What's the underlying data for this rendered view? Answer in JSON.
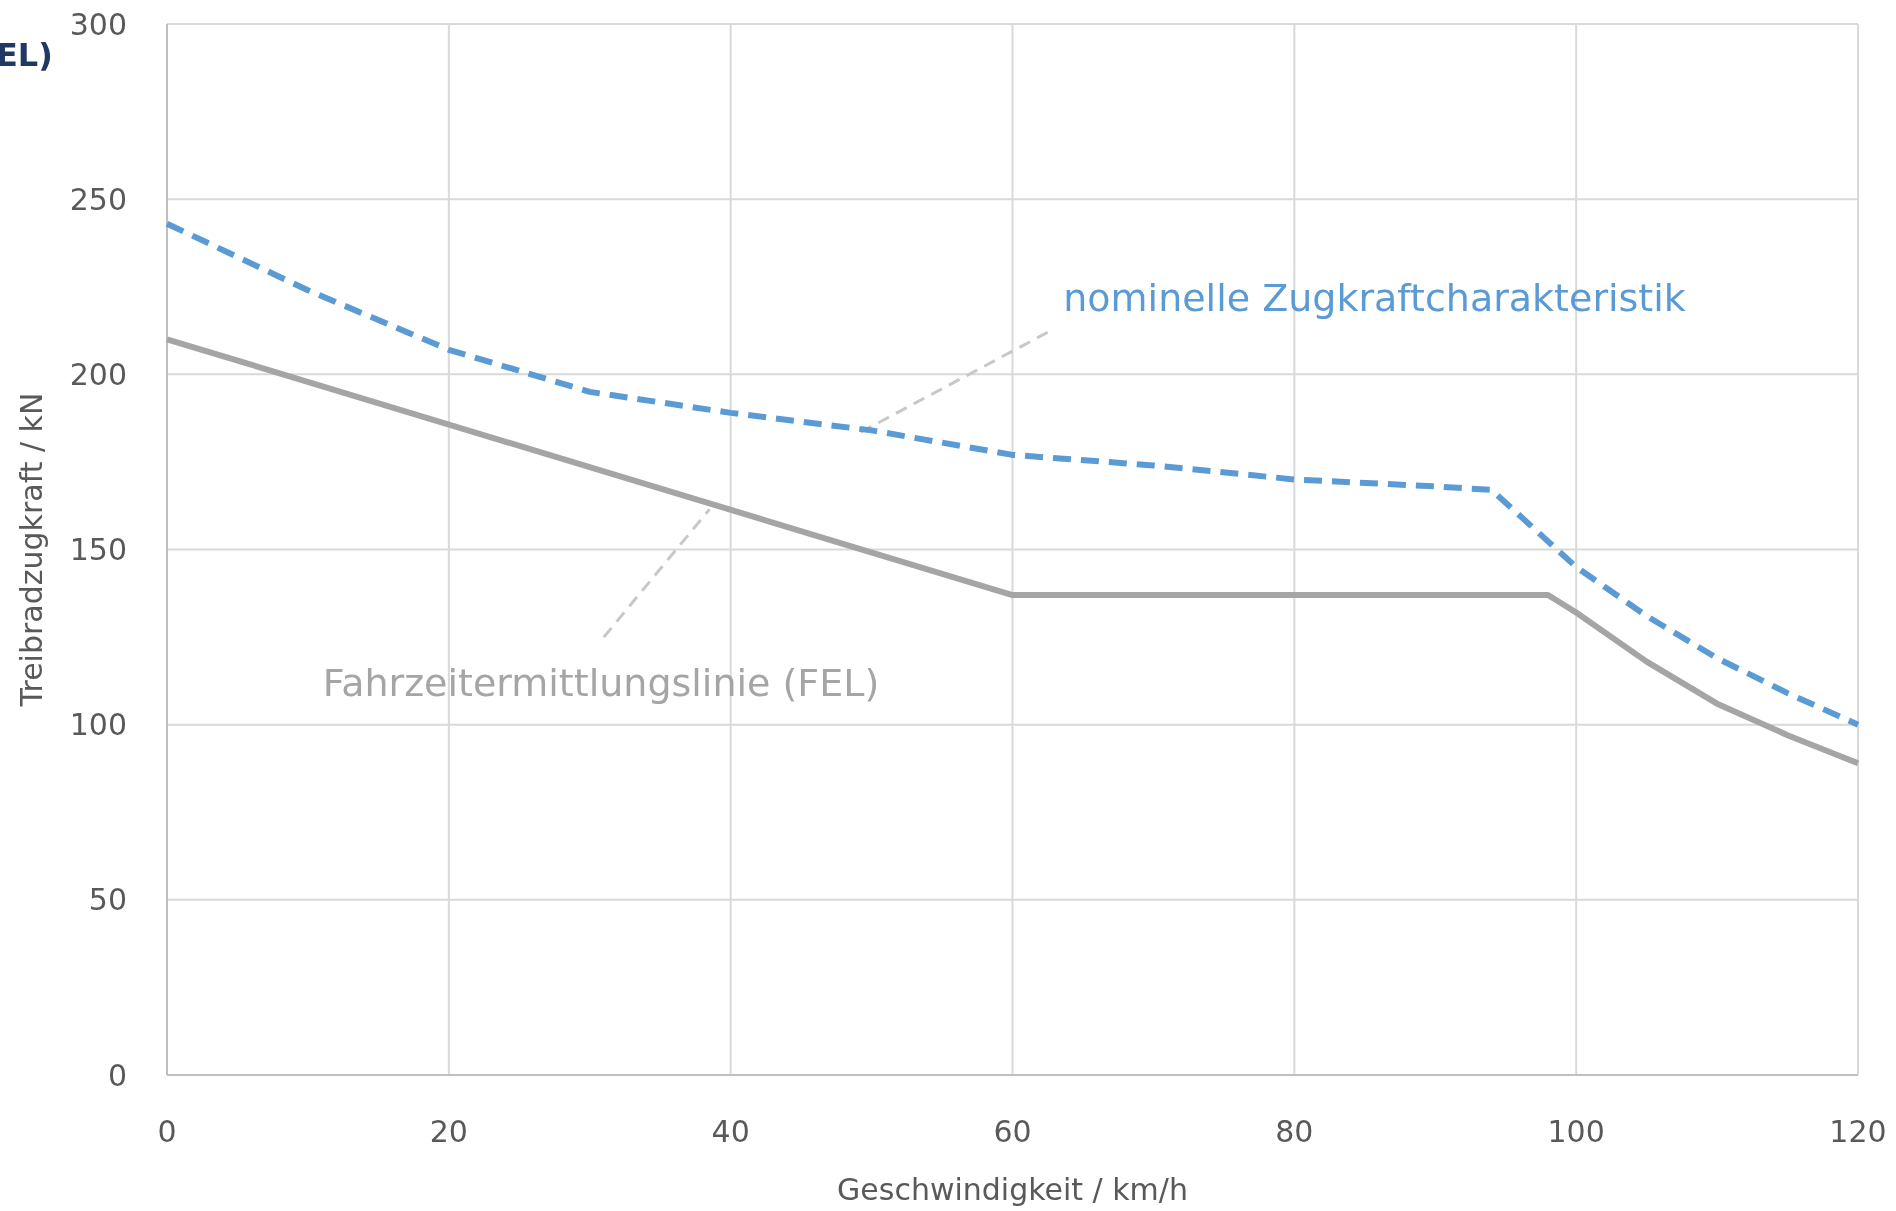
{
  "chart_data": {
    "type": "line",
    "xlabel": "Geschwindigkeit / km/h",
    "ylabel": "Treibradzugkraft / kN",
    "annotations": [
      "EL)"
    ],
    "xlim": [
      0,
      120
    ],
    "xticks": [
      0,
      20,
      40,
      60,
      80,
      100,
      120
    ],
    "ylim": [
      0,
      300
    ],
    "yticks": [
      0,
      50,
      100,
      150,
      200,
      250,
      300
    ],
    "grid": true,
    "series": [
      {
        "name": "nominelle Zugkraftcharakteristik",
        "color": "#5b9bd5",
        "line_style": "dashed",
        "x": [
          0,
          10,
          20,
          30,
          40,
          50,
          60,
          70,
          80,
          90,
          94,
          100,
          105,
          110,
          115,
          120
        ],
        "values": [
          243,
          224,
          207,
          195,
          189,
          184,
          177,
          174,
          170,
          168,
          167,
          145,
          131,
          119,
          109,
          100
        ]
      },
      {
        "name": "Fahrzeitermittlungslinie (FEL)",
        "color": "#a5a5a5",
        "line_style": "solid",
        "x": [
          0,
          60,
          98,
          100,
          105,
          110,
          115,
          120
        ],
        "values": [
          210,
          137,
          137,
          132,
          118,
          106,
          97,
          89
        ]
      }
    ]
  }
}
